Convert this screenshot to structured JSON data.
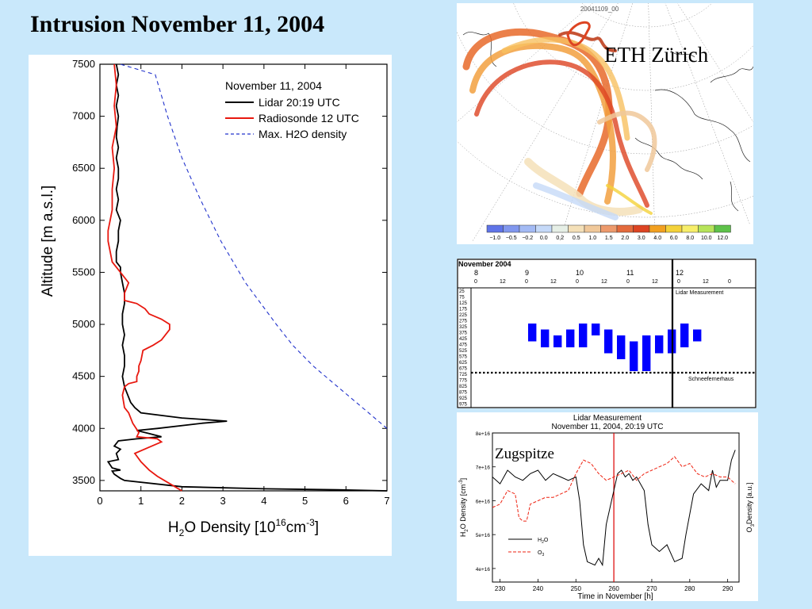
{
  "slide_title": "Intrusion November 11, 2004",
  "colors": {
    "background": "#c9e8fb",
    "lidar": "#000000",
    "radiosonde": "#e8180f",
    "max_h2o": "#2233cc",
    "lidar_blocks": "#0000ff",
    "ozone": "#ee2211",
    "marker": "#dd0000"
  },
  "main_chart": {
    "legend_title": "November 11, 2004",
    "ylabel": "Altitude [m a.s.l.]",
    "xlabel_base": "H",
    "xlabel_sub": "2",
    "xlabel_mid": "O Density [10",
    "xlabel_sup1": "16",
    "xlabel_unit": "cm",
    "xlabel_sup2": "-3",
    "xlabel_end": "]",
    "xticks": [
      "0",
      "1",
      "2",
      "3",
      "4",
      "5",
      "6",
      "7"
    ],
    "yticks": [
      "3500",
      "4000",
      "4500",
      "5000",
      "5500",
      "6000",
      "6500",
      "7000",
      "7500"
    ]
  },
  "chart_data": [
    {
      "type": "line",
      "xlim": [
        0,
        7
      ],
      "ylim": [
        3400,
        7500
      ],
      "grid": false,
      "legend_position": "top-right",
      "series": [
        {
          "name": "Lidar 20:19 UTC",
          "style": "solid",
          "points": [
            [
              7.0,
              3400
            ],
            [
              5.8,
              3410
            ],
            [
              4.0,
              3420
            ],
            [
              2.0,
              3440
            ],
            [
              0.6,
              3500
            ],
            [
              0.5,
              3520
            ],
            [
              0.35,
              3560
            ],
            [
              0.3,
              3590
            ],
            [
              0.5,
              3600
            ],
            [
              0.3,
              3620
            ],
            [
              0.25,
              3650
            ],
            [
              0.2,
              3680
            ],
            [
              0.45,
              3700
            ],
            [
              0.4,
              3760
            ],
            [
              0.5,
              3800
            ],
            [
              0.35,
              3830
            ],
            [
              0.45,
              3880
            ],
            [
              0.9,
              3900
            ],
            [
              1.5,
              3920
            ],
            [
              1.2,
              3950
            ],
            [
              0.9,
              3980
            ],
            [
              1.4,
              4000
            ],
            [
              2.5,
              4050
            ],
            [
              3.1,
              4070
            ],
            [
              2.0,
              4100
            ],
            [
              1.0,
              4150
            ],
            [
              0.85,
              4200
            ],
            [
              0.75,
              4250
            ],
            [
              0.7,
              4300
            ],
            [
              0.6,
              4400
            ],
            [
              0.55,
              4500
            ],
            [
              0.6,
              4600
            ],
            [
              0.6,
              4700
            ],
            [
              0.55,
              4800
            ],
            [
              0.6,
              4900
            ],
            [
              0.55,
              5000
            ],
            [
              0.55,
              5100
            ],
            [
              0.6,
              5200
            ],
            [
              0.6,
              5300
            ],
            [
              0.55,
              5400
            ],
            [
              0.5,
              5500
            ],
            [
              0.5,
              5550
            ],
            [
              0.4,
              5600
            ],
            [
              0.4,
              5700
            ],
            [
              0.45,
              5800
            ],
            [
              0.45,
              5900
            ],
            [
              0.5,
              6000
            ],
            [
              0.4,
              6100
            ],
            [
              0.45,
              6200
            ],
            [
              0.4,
              6300
            ],
            [
              0.45,
              6400
            ],
            [
              0.45,
              6500
            ],
            [
              0.4,
              6600
            ],
            [
              0.45,
              6700
            ],
            [
              0.4,
              6800
            ],
            [
              0.42,
              6900
            ],
            [
              0.45,
              7000
            ],
            [
              0.4,
              7100
            ],
            [
              0.45,
              7200
            ],
            [
              0.4,
              7300
            ],
            [
              0.45,
              7400
            ],
            [
              0.4,
              7500
            ]
          ]
        },
        {
          "name": "Radiosonde 12 UTC",
          "style": "solid",
          "points": [
            [
              2.0,
              3400
            ],
            [
              1.7,
              3470
            ],
            [
              1.4,
              3540
            ],
            [
              1.2,
              3600
            ],
            [
              1.0,
              3680
            ],
            [
              0.85,
              3760
            ],
            [
              1.2,
              3820
            ],
            [
              1.5,
              3870
            ],
            [
              1.4,
              3900
            ],
            [
              0.9,
              3920
            ],
            [
              0.95,
              3960
            ],
            [
              0.8,
              4050
            ],
            [
              0.7,
              4150
            ],
            [
              0.6,
              4200
            ],
            [
              0.55,
              4320
            ],
            [
              0.6,
              4400
            ],
            [
              0.7,
              4430
            ],
            [
              0.9,
              4450
            ],
            [
              0.9,
              4500
            ],
            [
              0.95,
              4550
            ],
            [
              0.95,
              4600
            ],
            [
              1.0,
              4650
            ],
            [
              1.05,
              4750
            ],
            [
              1.3,
              4800
            ],
            [
              1.5,
              4850
            ],
            [
              1.6,
              4900
            ],
            [
              1.7,
              4950
            ],
            [
              1.7,
              5000
            ],
            [
              1.5,
              5050
            ],
            [
              1.2,
              5100
            ],
            [
              1.1,
              5150
            ],
            [
              0.9,
              5200
            ],
            [
              0.6,
              5230
            ],
            [
              0.6,
              5300
            ],
            [
              0.7,
              5400
            ],
            [
              0.5,
              5500
            ],
            [
              0.3,
              5600
            ],
            [
              0.25,
              5700
            ],
            [
              0.2,
              5800
            ],
            [
              0.2,
              5900
            ],
            [
              0.25,
              6000
            ],
            [
              0.3,
              6100
            ],
            [
              0.3,
              6300
            ],
            [
              0.35,
              6500
            ],
            [
              0.3,
              6700
            ],
            [
              0.4,
              6900
            ],
            [
              0.35,
              7100
            ],
            [
              0.4,
              7300
            ],
            [
              0.35,
              7500
            ]
          ]
        },
        {
          "name": "Max. H2O density",
          "style": "dashed",
          "points": [
            [
              7.0,
              4000
            ],
            [
              6.4,
              4200
            ],
            [
              5.8,
              4400
            ],
            [
              5.2,
              4600
            ],
            [
              4.7,
              4800
            ],
            [
              4.3,
              5000
            ],
            [
              3.55,
              5400
            ],
            [
              2.95,
              5800
            ],
            [
              2.45,
              6200
            ],
            [
              2.0,
              6600
            ],
            [
              1.65,
              7000
            ],
            [
              1.35,
              7400
            ],
            [
              0.5,
              7500
            ]
          ]
        }
      ]
    },
    {
      "type": "line",
      "title": "Lidar Measurement",
      "subtitle": "November 11, 2004, 20:19 UTC",
      "xlabel": "Time in November [h]",
      "xlim": [
        228,
        293
      ],
      "ylim": [
        3.6e+16,
        8e+16
      ],
      "xticks": [
        "230",
        "240",
        "250",
        "260",
        "270",
        "280",
        "290"
      ],
      "yticks": [
        "4e+16",
        "5e+16",
        "6e+16",
        "7e+16",
        "8e+16"
      ],
      "marker_x": 260,
      "series": [
        {
          "name": "H2O",
          "style": "solid",
          "points": [
            [
              228,
              6.7e+16
            ],
            [
              230,
              6.5e+16
            ],
            [
              232,
              6.9e+16
            ],
            [
              234,
              6.7e+16
            ],
            [
              236,
              6.6e+16
            ],
            [
              238,
              6.8e+16
            ],
            [
              240,
              6.9e+16
            ],
            [
              242,
              6.6e+16
            ],
            [
              244,
              6.8e+16
            ],
            [
              246,
              6.7e+16
            ],
            [
              248,
              6.6e+16
            ],
            [
              250,
              6.7e+16
            ],
            [
              251,
              6e+16
            ],
            [
              252,
              4.7e+16
            ],
            [
              253,
              4.2e+16
            ],
            [
              255,
              4.1e+16
            ],
            [
              256,
              4.3e+16
            ],
            [
              257,
              4.1e+16
            ],
            [
              258,
              5.3e+16
            ],
            [
              259,
              5.8e+16
            ],
            [
              260,
              6.3e+16
            ],
            [
              261,
              6.8e+16
            ],
            [
              262,
              6.9e+16
            ],
            [
              263,
              6.7e+16
            ],
            [
              264,
              6.8e+16
            ],
            [
              265,
              6.6e+16
            ],
            [
              266,
              6.7e+16
            ],
            [
              268,
              6.3e+16
            ],
            [
              269,
              5.3e+16
            ],
            [
              270,
              4.7e+16
            ],
            [
              272,
              4.5e+16
            ],
            [
              274,
              4.7e+16
            ],
            [
              276,
              4.2e+16
            ],
            [
              278,
              4.3e+16
            ],
            [
              279,
              5e+16
            ],
            [
              281,
              6.2e+16
            ],
            [
              283,
              6.5e+16
            ],
            [
              285,
              6.3e+16
            ],
            [
              286,
              6.9e+16
            ],
            [
              287,
              6.4e+16
            ],
            [
              288,
              6.6e+16
            ],
            [
              290,
              6.6e+16
            ],
            [
              291,
              7.2e+16
            ],
            [
              292,
              7.5e+16
            ]
          ]
        },
        {
          "name": "O3",
          "style": "dashed",
          "points": [
            [
              228,
              5.8e+16
            ],
            [
              230,
              5.9e+16
            ],
            [
              232,
              6.3e+16
            ],
            [
              234,
              6.2e+16
            ],
            [
              235,
              5.5e+16
            ],
            [
              236,
              5.4e+16
            ],
            [
              237,
              5.4e+16
            ],
            [
              238,
              5.9e+16
            ],
            [
              240,
              6e+16
            ],
            [
              242,
              6.1e+16
            ],
            [
              244,
              6.1e+16
            ],
            [
              246,
              6.2e+16
            ],
            [
              248,
              6.3e+16
            ],
            [
              250,
              6.8e+16
            ],
            [
              252,
              7.2e+16
            ],
            [
              254,
              7.1e+16
            ],
            [
              256,
              6.8e+16
            ],
            [
              258,
              6.6e+16
            ],
            [
              260,
              6.7e+16
            ],
            [
              262,
              6.8e+16
            ],
            [
              264,
              6.9e+16
            ],
            [
              266,
              6.6e+16
            ],
            [
              268,
              6.8e+16
            ],
            [
              270,
              6.9e+16
            ],
            [
              272,
              7e+16
            ],
            [
              274,
              7.1e+16
            ],
            [
              276,
              7.3e+16
            ],
            [
              278,
              7e+16
            ],
            [
              280,
              7.1e+16
            ],
            [
              282,
              6.8e+16
            ],
            [
              284,
              6.7e+16
            ],
            [
              286,
              6.8e+16
            ],
            [
              288,
              6.7e+16
            ],
            [
              290,
              6.7e+16
            ],
            [
              292,
              6.5e+16
            ]
          ]
        }
      ]
    }
  ],
  "trajectory_map": {
    "title": "20041109_00",
    "label": "ETH Zürich",
    "colorbar_ticks": [
      "−1.0",
      "−0.5",
      "−0.2",
      "0.0",
      "0.2",
      "0.5",
      "1.0",
      "1.5",
      "2.0",
      "3.0",
      "4.0",
      "6.0",
      "8.0",
      "10.0",
      "12.0"
    ],
    "colorbar_colors": [
      "#5f74e8",
      "#8197ee",
      "#a3baf4",
      "#c5d9f8",
      "#e6efe6",
      "#f4e0b8",
      "#f0c89a",
      "#ed9a6c",
      "#e46a3c",
      "#dd4422",
      "#f2a020",
      "#f4d23a",
      "#f7ee6a",
      "#b7e45a",
      "#5ec24a"
    ]
  },
  "lidar_grid": {
    "title": "November 2004",
    "days": [
      "8",
      "9",
      "10",
      "11",
      "12"
    ],
    "hours": [
      "0",
      "12",
      "0",
      "12",
      "0",
      "12",
      "0",
      "12",
      "0",
      "12",
      "0"
    ],
    "altitudes": [
      "25",
      "75",
      "125",
      "175",
      "225",
      "275",
      "325",
      "375",
      "425",
      "475",
      "525",
      "575",
      "625",
      "675",
      "725",
      "775",
      "825",
      "875",
      "925",
      "975"
    ],
    "lidar_label": "Lidar Measurement",
    "station_label": "Schneefernerhaus",
    "blocks": [
      [
        9,
        "325-425"
      ],
      [
        11,
        "375-475"
      ],
      [
        13,
        "425-475"
      ],
      [
        15,
        "375-475"
      ],
      [
        17,
        "325-475"
      ],
      [
        19,
        "325-375"
      ],
      [
        21,
        "375-525"
      ],
      [
        23,
        "425-575"
      ],
      [
        25,
        "475-675"
      ],
      [
        27,
        "425-675"
      ],
      [
        29,
        "425-525"
      ],
      [
        31,
        "375-525"
      ],
      [
        33,
        "325-475"
      ],
      [
        35,
        "375-425"
      ]
    ]
  },
  "time_series_panel": {
    "overlay_label": "Zugspitze",
    "ylabel_left_a": "H",
    "ylabel_left_b": "2",
    "ylabel_left_c": "O Density [cm",
    "ylabel_left_d": "-3",
    "ylabel_left_e": "]",
    "ylabel_right_a": "O",
    "ylabel_right_b": "3",
    "ylabel_right_c": "Density [a.u.]",
    "legend_h2o_a": "H",
    "legend_h2o_b": "2",
    "legend_h2o_c": "O",
    "legend_o3_a": "O",
    "legend_o3_b": "3"
  }
}
